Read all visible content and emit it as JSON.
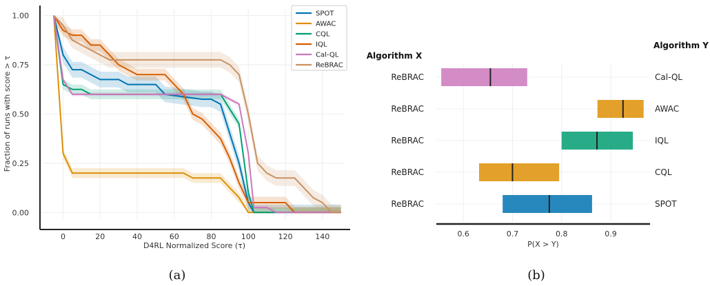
{
  "colors": {
    "SPOT": "#0173b2",
    "AWAC": "#de8f05",
    "CQL": "#029e73",
    "IQL": "#d55e00",
    "Cal-QL": "#cc78bc",
    "ReBRAC": "#ca9161"
  },
  "chart_data": [
    {
      "type": "line",
      "xlabel": "D4RL Normalized Score (τ)",
      "ylabel": "Fraction of runs with score > τ",
      "xlim": [
        -8,
        152
      ],
      "ylim": [
        -0.02,
        1.03
      ],
      "x_ticks": [
        0,
        20,
        40,
        60,
        80,
        100,
        120,
        140
      ],
      "x_tick_labels": [
        "0",
        "20",
        "40",
        "60",
        "80",
        "100",
        "120",
        "140"
      ],
      "y_ticks": [
        0,
        0.25,
        0.5,
        0.75,
        1.0
      ],
      "y_tick_labels": [
        "0.00",
        "0.25",
        "0.50",
        "0.75",
        "1.00"
      ],
      "grid": true,
      "legend_position": "top-right",
      "caption": "(a)",
      "series": [
        {
          "name": "SPOT",
          "color_key": "SPOT",
          "band": 0.04,
          "points": [
            [
              -5,
              1.0
            ],
            [
              0,
              0.8
            ],
            [
              5,
              0.725
            ],
            [
              10,
              0.725
            ],
            [
              15,
              0.7
            ],
            [
              20,
              0.675
            ],
            [
              30,
              0.675
            ],
            [
              35,
              0.65
            ],
            [
              50,
              0.65
            ],
            [
              55,
              0.6
            ],
            [
              75,
              0.575
            ],
            [
              80,
              0.575
            ],
            [
              85,
              0.55
            ],
            [
              90,
              0.4
            ],
            [
              95,
              0.25
            ],
            [
              100,
              0.05
            ],
            [
              103,
              0.0
            ],
            [
              150,
              0.0
            ]
          ]
        },
        {
          "name": "AWAC",
          "color_key": "AWAC",
          "band": 0.025,
          "points": [
            [
              -5,
              1.0
            ],
            [
              0,
              0.3
            ],
            [
              5,
              0.2
            ],
            [
              65,
              0.2
            ],
            [
              70,
              0.175
            ],
            [
              85,
              0.175
            ],
            [
              90,
              0.125
            ],
            [
              95,
              0.075
            ],
            [
              100,
              0.0
            ],
            [
              150,
              0.0
            ]
          ]
        },
        {
          "name": "CQL",
          "color_key": "CQL",
          "band": 0.025,
          "points": [
            [
              -5,
              1.0
            ],
            [
              0,
              0.65
            ],
            [
              5,
              0.625
            ],
            [
              10,
              0.625
            ],
            [
              15,
              0.6
            ],
            [
              85,
              0.6
            ],
            [
              90,
              0.525
            ],
            [
              95,
              0.45
            ],
            [
              100,
              0.1
            ],
            [
              103,
              0.0
            ],
            [
              150,
              0.0
            ]
          ]
        },
        {
          "name": "IQL",
          "color_key": "IQL",
          "band": 0.03,
          "points": [
            [
              -5,
              1.0
            ],
            [
              0,
              0.925
            ],
            [
              5,
              0.9
            ],
            [
              10,
              0.9
            ],
            [
              15,
              0.85
            ],
            [
              20,
              0.85
            ],
            [
              25,
              0.8
            ],
            [
              30,
              0.75
            ],
            [
              35,
              0.725
            ],
            [
              40,
              0.7
            ],
            [
              55,
              0.7
            ],
            [
              60,
              0.65
            ],
            [
              65,
              0.6
            ],
            [
              70,
              0.5
            ],
            [
              75,
              0.475
            ],
            [
              80,
              0.425
            ],
            [
              85,
              0.375
            ],
            [
              90,
              0.275
            ],
            [
              95,
              0.15
            ],
            [
              100,
              0.05
            ],
            [
              120,
              0.05
            ],
            [
              125,
              0.0
            ],
            [
              150,
              0.0
            ]
          ]
        },
        {
          "name": "Cal-QL",
          "color_key": "Cal-QL",
          "band": 0.01,
          "points": [
            [
              -5,
              1.0
            ],
            [
              0,
              0.675
            ],
            [
              5,
              0.6
            ],
            [
              85,
              0.6
            ],
            [
              90,
              0.575
            ],
            [
              95,
              0.55
            ],
            [
              100,
              0.3
            ],
            [
              103,
              0.025
            ],
            [
              110,
              0.025
            ],
            [
              115,
              0.0
            ],
            [
              150,
              0.0
            ]
          ]
        },
        {
          "name": "ReBRAC",
          "color_key": "ReBRAC",
          "band": 0.04,
          "points": [
            [
              -5,
              1.0
            ],
            [
              0,
              0.95
            ],
            [
              5,
              0.875
            ],
            [
              15,
              0.825
            ],
            [
              20,
              0.8
            ],
            [
              25,
              0.775
            ],
            [
              85,
              0.775
            ],
            [
              90,
              0.75
            ],
            [
              95,
              0.7
            ],
            [
              100,
              0.5
            ],
            [
              105,
              0.25
            ],
            [
              110,
              0.2
            ],
            [
              115,
              0.175
            ],
            [
              125,
              0.175
            ],
            [
              135,
              0.075
            ],
            [
              140,
              0.05
            ],
            [
              145,
              0.0
            ],
            [
              150,
              0.0
            ]
          ]
        }
      ]
    },
    {
      "type": "interval",
      "xlabel": "P(X > Y)",
      "xlim": [
        0.545,
        0.98
      ],
      "x_ticks": [
        0.6,
        0.7,
        0.8,
        0.9
      ],
      "x_tick_labels": [
        "0.6",
        "0.7",
        "0.8",
        "0.9"
      ],
      "header_left": "Algorithm X",
      "header_right": "Algorithm Y",
      "grid": true,
      "caption": "(b)",
      "rows": [
        {
          "x": "ReBRAC",
          "y": "Cal-QL",
          "low": 0.555,
          "high": 0.73,
          "point": 0.655,
          "color_key": "Cal-QL"
        },
        {
          "x": "ReBRAC",
          "y": "AWAC",
          "low": 0.873,
          "high": 0.967,
          "point": 0.925,
          "color_key": "AWAC"
        },
        {
          "x": "ReBRAC",
          "y": "IQL",
          "low": 0.8,
          "high": 0.945,
          "point": 0.872,
          "color_key": "CQL"
        },
        {
          "x": "ReBRAC",
          "y": "CQL",
          "low": 0.632,
          "high": 0.795,
          "point": 0.7,
          "color_key": "AWAC"
        },
        {
          "x": "ReBRAC",
          "y": "SPOT",
          "low": 0.68,
          "high": 0.862,
          "point": 0.775,
          "color_key": "SPOT"
        }
      ]
    }
  ]
}
